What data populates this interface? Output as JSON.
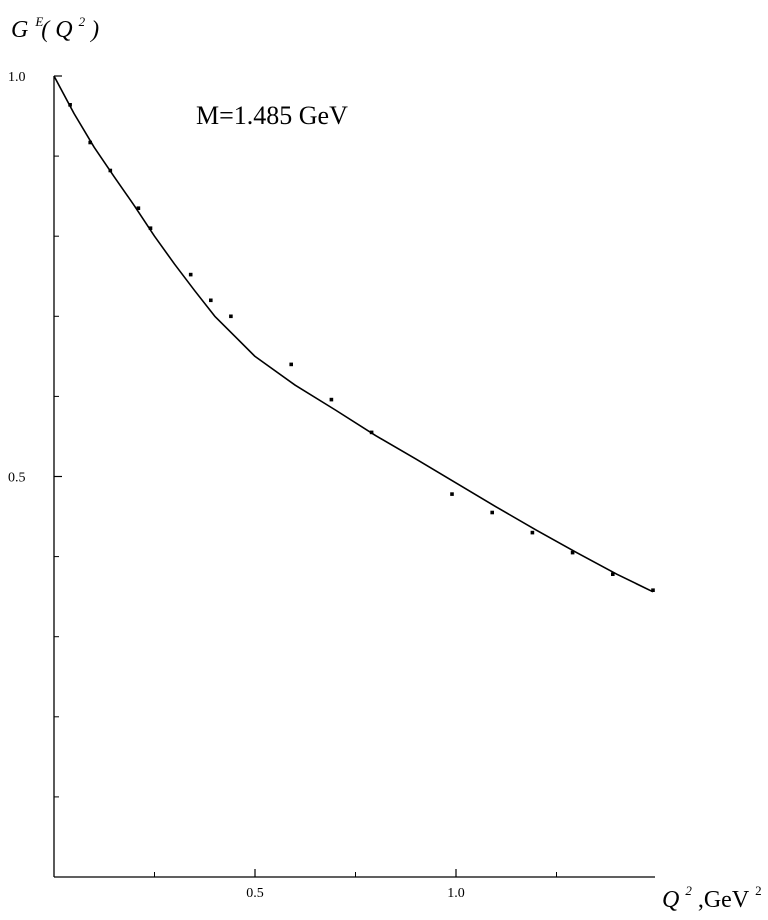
{
  "chart_data": {
    "type": "scatter",
    "title": "",
    "ylabel": {
      "main": "G",
      "sup1": "E",
      "paren_open": "(",
      "var": "Q",
      "sup2": "2",
      "paren_close": ")"
    },
    "xlabel": {
      "var": "Q",
      "sup1": "2",
      "unit": ",GeV",
      "sup2": "2"
    },
    "annotation": "M=1.485 GeV",
    "xlim": [
      0.0,
      1.5
    ],
    "ylim": [
      0.0,
      1.0
    ],
    "x_ticks": [
      {
        "value": 0.5,
        "label": "0.5"
      },
      {
        "value": 1.0,
        "label": "1.0"
      }
    ],
    "x_minor_ticks": [
      0.25,
      0.75,
      1.25
    ],
    "y_ticks": [
      {
        "value": 0.5,
        "label": "0.5"
      },
      {
        "value": 1.0,
        "label": "1.0"
      }
    ],
    "y_minor_ticks": [
      0.1,
      0.2,
      0.3,
      0.4,
      0.6,
      0.7,
      0.8,
      0.9
    ],
    "grid": false,
    "series": [
      {
        "kind": "points",
        "x": [
          0.04,
          0.09,
          0.14,
          0.21,
          0.24,
          0.34,
          0.39,
          0.44,
          0.59,
          0.69,
          0.79,
          0.99,
          1.09,
          1.19,
          1.29,
          1.39,
          1.49
        ],
        "y": [
          0.964,
          0.917,
          0.882,
          0.835,
          0.81,
          0.752,
          0.72,
          0.7,
          0.64,
          0.596,
          0.555,
          0.478,
          0.455,
          0.43,
          0.405,
          0.378,
          0.358
        ]
      },
      {
        "kind": "line",
        "x": [
          0.0,
          0.05,
          0.1,
          0.15,
          0.2,
          0.25,
          0.3,
          0.35,
          0.4,
          0.45,
          0.5,
          0.6,
          0.7,
          0.8,
          0.9,
          1.0,
          1.1,
          1.2,
          1.3,
          1.4,
          1.49
        ],
        "y": [
          1.0,
          0.953,
          0.911,
          0.874,
          0.838,
          0.8,
          0.765,
          0.732,
          0.7,
          0.675,
          0.65,
          0.614,
          0.583,
          0.551,
          0.522,
          0.492,
          0.462,
          0.433,
          0.405,
          0.378,
          0.356
        ]
      }
    ]
  }
}
